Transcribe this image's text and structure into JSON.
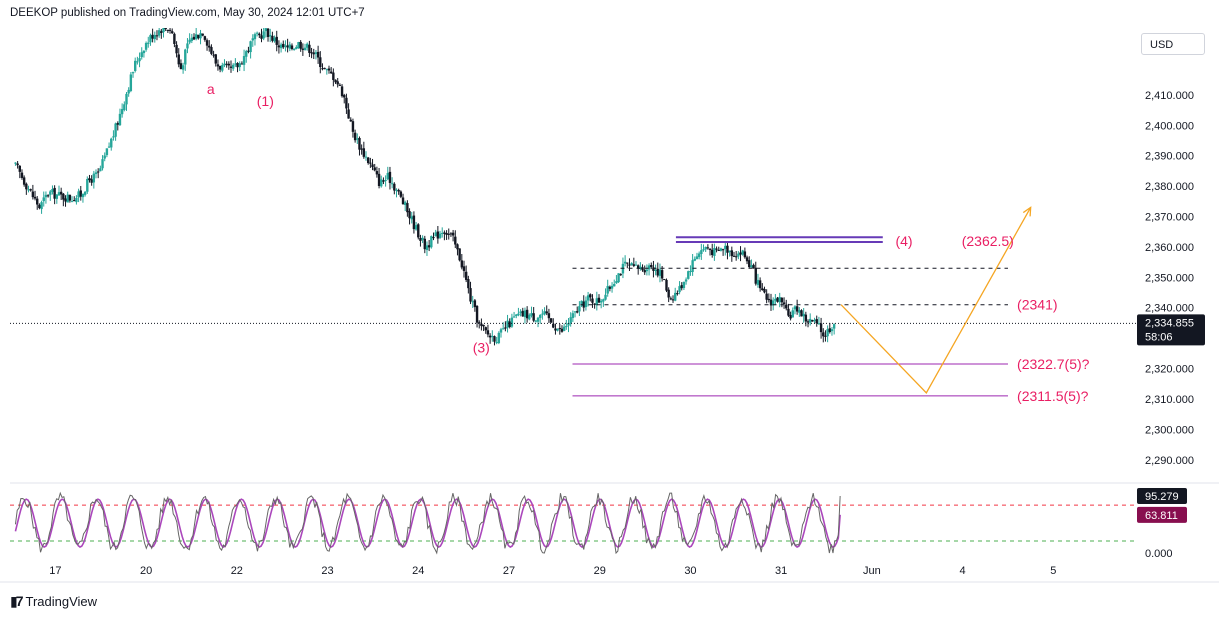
{
  "header": {
    "publisher_text": "DEEKOP published on TradingView.com, May 30, 2024 12:01 UTC+7"
  },
  "currency": "USD",
  "footer": {
    "brand": "TradingView",
    "logo_icon": "tradingview-logo-icon"
  },
  "colors": {
    "up": "#26a69a",
    "down": "#131722",
    "wave": "#e91e63",
    "target": "#9c27b0",
    "resistance": "#673ab7",
    "projection": "#f5a623",
    "stoch_k": "#666666",
    "stoch_d": "#ab47bc",
    "overbought": "#f23645",
    "oversold": "#4caf50"
  },
  "chart_data": [
    {
      "type": "candlestick",
      "symbol_currency": "USD",
      "y_range": [
        2284,
        2432
      ],
      "y_ticks": [
        "2,410.000",
        "2,400.000",
        "2,390.000",
        "2,380.000",
        "2,370.000",
        "2,360.000",
        "2,350.000",
        "2,340.000",
        "2,330.000",
        "2,320.000",
        "2,310.000",
        "2,300.000",
        "2,290.000"
      ],
      "y_tick_values": [
        2410,
        2400,
        2390,
        2380,
        2370,
        2360,
        2350,
        2340,
        2330,
        2320,
        2310,
        2300,
        2290
      ],
      "x_ticks": [
        "17",
        "20",
        "22",
        "23",
        "24",
        "27",
        "29",
        "30",
        "31",
        "Jun",
        "4",
        "5"
      ],
      "x_tick_positions": [
        0.5,
        1.5,
        2.5,
        3.5,
        4.5,
        5.5,
        6.5,
        7.5,
        8.5,
        9.5,
        10.5,
        11.5
      ],
      "x_range": [
        0,
        12.4
      ],
      "current_price": {
        "value": 2334.855,
        "label": "2,334.855",
        "countdown": "58:06"
      },
      "price_path": [
        [
          0.0,
          2389
        ],
        [
          0.1,
          2386
        ],
        [
          0.25,
          2378
        ],
        [
          0.35,
          2373
        ],
        [
          0.45,
          2378
        ],
        [
          0.55,
          2377
        ],
        [
          0.7,
          2376
        ],
        [
          0.8,
          2377
        ],
        [
          0.9,
          2382
        ],
        [
          1.0,
          2384
        ],
        [
          1.1,
          2392
        ],
        [
          1.2,
          2400
        ],
        [
          1.3,
          2410
        ],
        [
          1.4,
          2420
        ],
        [
          1.5,
          2426
        ],
        [
          1.6,
          2430
        ],
        [
          1.7,
          2432
        ],
        [
          1.8,
          2432
        ],
        [
          1.9,
          2418
        ],
        [
          2.0,
          2428
        ],
        [
          2.15,
          2431
        ],
        [
          2.3,
          2420
        ],
        [
          2.45,
          2418
        ],
        [
          2.55,
          2420
        ],
        [
          2.7,
          2428
        ],
        [
          2.85,
          2431
        ],
        [
          3.0,
          2426
        ],
        [
          3.1,
          2425
        ],
        [
          3.2,
          2427
        ],
        [
          3.35,
          2425
        ],
        [
          3.5,
          2418
        ],
        [
          3.6,
          2416
        ],
        [
          3.7,
          2410
        ],
        [
          3.8,
          2398
        ],
        [
          3.9,
          2392
        ],
        [
          4.0,
          2387
        ],
        [
          4.1,
          2381
        ],
        [
          4.2,
          2383
        ],
        [
          4.3,
          2378
        ],
        [
          4.4,
          2372
        ],
        [
          4.5,
          2366
        ],
        [
          4.6,
          2360
        ],
        [
          4.7,
          2363
        ],
        [
          4.8,
          2366
        ],
        [
          4.9,
          2363
        ],
        [
          5.0,
          2355
        ],
        [
          5.1,
          2343
        ],
        [
          5.2,
          2334
        ],
        [
          5.3,
          2331
        ],
        [
          5.4,
          2330
        ],
        [
          5.5,
          2334
        ],
        [
          5.6,
          2337
        ],
        [
          5.7,
          2338
        ],
        [
          5.8,
          2337
        ],
        [
          5.9,
          2338
        ],
        [
          6.0,
          2335
        ],
        [
          6.1,
          2332
        ],
        [
          6.2,
          2336
        ],
        [
          6.3,
          2340
        ],
        [
          6.4,
          2343
        ],
        [
          6.5,
          2342
        ],
        [
          6.6,
          2345
        ],
        [
          6.7,
          2350
        ],
        [
          6.8,
          2354
        ],
        [
          6.9,
          2353
        ],
        [
          7.0,
          2353
        ],
        [
          7.1,
          2354
        ],
        [
          7.2,
          2351
        ],
        [
          7.3,
          2343
        ],
        [
          7.4,
          2346
        ],
        [
          7.5,
          2352
        ],
        [
          7.6,
          2358
        ],
        [
          7.7,
          2360
        ],
        [
          7.8,
          2358
        ],
        [
          7.9,
          2360
        ],
        [
          8.0,
          2358
        ],
        [
          8.1,
          2358
        ],
        [
          8.2,
          2353
        ],
        [
          8.3,
          2345
        ],
        [
          8.4,
          2342
        ],
        [
          8.5,
          2343
        ],
        [
          8.6,
          2337
        ],
        [
          8.7,
          2340
        ],
        [
          8.8,
          2336
        ],
        [
          8.9,
          2335
        ],
        [
          9.0,
          2331
        ],
        [
          9.1,
          2335
        ]
      ],
      "x_visible_start": 0.06,
      "horizontal_lines": [
        {
          "name": "resistance-upper",
          "value": 2363.2,
          "from": 7.34,
          "to": 9.62,
          "style": "solid",
          "color": "#673ab7"
        },
        {
          "name": "resistance-lower",
          "value": 2361.6,
          "from": 7.34,
          "to": 9.62,
          "style": "solid",
          "color": "#673ab7"
        },
        {
          "name": "level-2353",
          "value": 2353,
          "from": 6.2,
          "to": 11.0,
          "style": "dashed",
          "color": "#131722"
        },
        {
          "name": "level-2341",
          "value": 2341,
          "from": 6.2,
          "to": 11.0,
          "style": "dashed",
          "color": "#131722"
        },
        {
          "name": "target-2322",
          "value": 2321.5,
          "from": 6.2,
          "to": 11.0,
          "style": "solid",
          "color": "#9c27b0"
        },
        {
          "name": "target-2311",
          "value": 2311,
          "from": 6.2,
          "to": 11.0,
          "style": "solid",
          "color": "#9c27b0"
        }
      ],
      "projection_path": [
        [
          9.16,
          2341
        ],
        [
          10.1,
          2312
        ],
        [
          11.25,
          2373
        ]
      ],
      "annotations": [
        {
          "text": "a",
          "x": 2.17,
          "y": 2412,
          "name": "wave-label-a"
        },
        {
          "text": "(1)",
          "x": 2.72,
          "y": 2408,
          "name": "wave-label-1"
        },
        {
          "text": "(3)",
          "x": 5.1,
          "y": 2327,
          "name": "wave-label-3"
        },
        {
          "text": "(4)",
          "x": 9.76,
          "y": 2362,
          "name": "wave-label-4"
        },
        {
          "text": "(2362.5)",
          "x": 10.49,
          "y": 2362,
          "name": "level-label-2362-5"
        },
        {
          "text": "(2341)",
          "x": 11.1,
          "y": 2341,
          "name": "level-label-2341"
        },
        {
          "text": "(2322.7(5)?",
          "x": 11.1,
          "y": 2321.5,
          "name": "level-label-2322-7"
        },
        {
          "text": "(2311.5(5)?",
          "x": 11.1,
          "y": 2311,
          "name": "level-label-2311-5"
        }
      ]
    },
    {
      "type": "line",
      "name": "stochastic-oscillator",
      "y_range": [
        -5,
        112
      ],
      "y_ticks": [
        "0.000"
      ],
      "y_tick_values": [
        0
      ],
      "levels": [
        {
          "value": 80,
          "color": "#f23645"
        },
        {
          "value": 20,
          "color": "#4caf50"
        }
      ],
      "last_values": {
        "k": 95.279,
        "k_label": "95.279",
        "d": 63.811,
        "d_label": "63.811"
      },
      "cycles": 23,
      "x_end": 9.15
    }
  ]
}
